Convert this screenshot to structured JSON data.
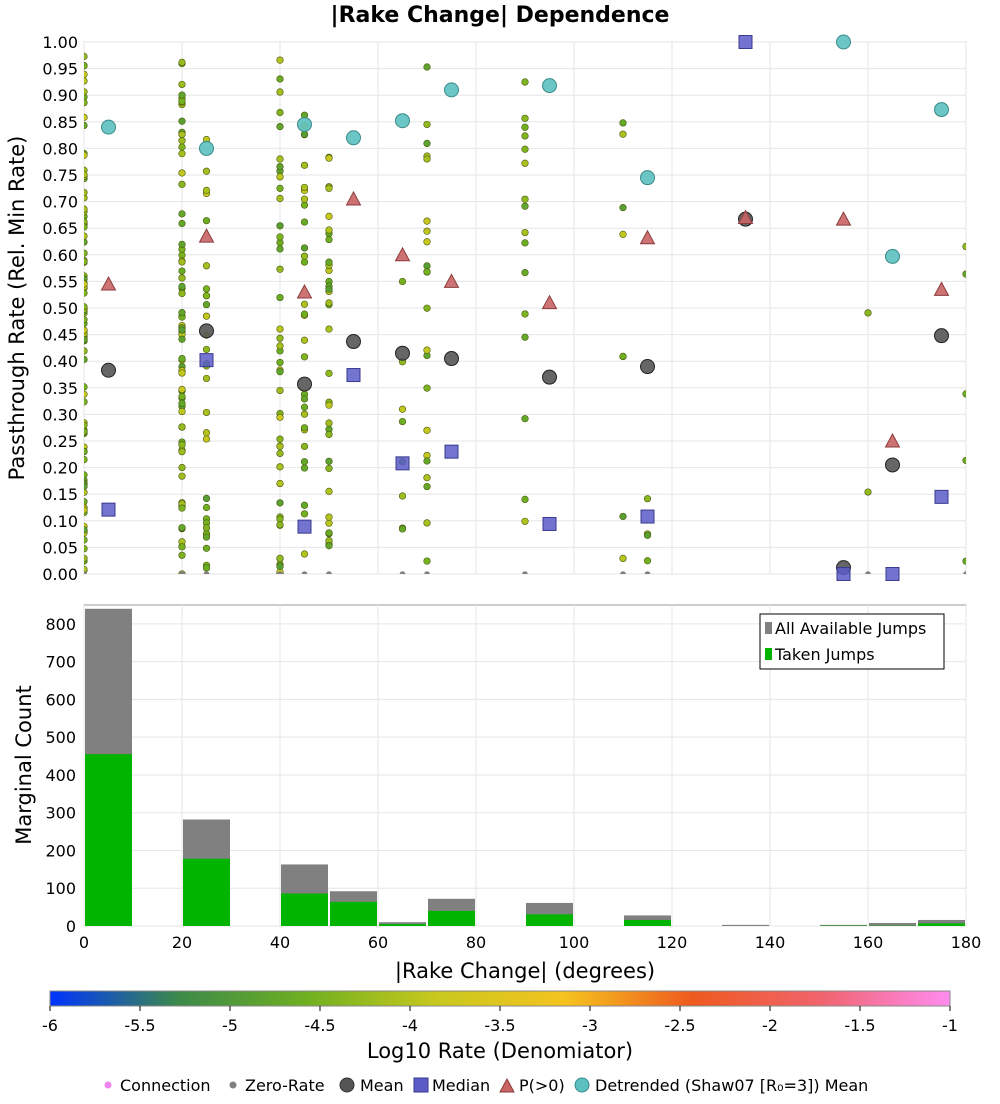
{
  "title": "|Rake Change| Dependence",
  "chart_data": [
    {
      "type": "scatter",
      "title": "|Rake Change| Dependence",
      "ylabel": "Passthrough Rate (Rel. Min Rate)",
      "xlim": [
        0,
        180
      ],
      "ylim": [
        0,
        1
      ],
      "grid": true,
      "y_ticks": [
        "0.00",
        "0.05",
        "0.10",
        "0.15",
        "0.20",
        "0.25",
        "0.30",
        "0.35",
        "0.40",
        "0.45",
        "0.50",
        "0.55",
        "0.60",
        "0.65",
        "0.70",
        "0.75",
        "0.80",
        "0.85",
        "0.90",
        "0.95",
        "1.00"
      ],
      "series": [
        {
          "name": "Mean",
          "color": "#555555",
          "x": [
            5,
            25,
            45,
            55,
            65,
            75,
            95,
            115,
            135,
            155,
            165,
            175
          ],
          "y": [
            0.383,
            0.457,
            0.357,
            0.437,
            0.415,
            0.405,
            0.37,
            0.39,
            0.667,
            0.012,
            0.205,
            0.448
          ]
        },
        {
          "name": "Median",
          "color": "#5b5bc8",
          "x": [
            5,
            25,
            45,
            55,
            65,
            75,
            95,
            115,
            135,
            155,
            165,
            175
          ],
          "y": [
            0.121,
            0.402,
            0.089,
            0.374,
            0.208,
            0.23,
            0.094,
            0.108,
            1.0,
            0.0,
            0.0,
            0.145
          ]
        },
        {
          "name": "P(>0)",
          "color": "#c86464",
          "x": [
            5,
            25,
            45,
            55,
            65,
            75,
            95,
            115,
            135,
            155,
            165,
            175
          ],
          "y": [
            0.545,
            0.635,
            0.53,
            0.705,
            0.6,
            0.55,
            0.51,
            0.632,
            0.67,
            0.667,
            0.25,
            0.535
          ]
        },
        {
          "name": "Detrended (Shaw07 [R₀=3]) Mean",
          "color": "#5cc0c0",
          "x": [
            5,
            25,
            45,
            55,
            65,
            75,
            95,
            115,
            155,
            165,
            175
          ],
          "y": [
            0.84,
            0.8,
            0.845,
            0.82,
            0.852,
            0.91,
            0.918,
            0.745,
            1.0,
            0.597,
            0.873
          ]
        }
      ],
      "connection_columns": {
        "x": [
          0,
          20,
          25,
          40,
          45,
          50,
          65,
          70,
          90,
          110,
          115,
          160,
          180
        ],
        "counts": [
          95,
          70,
          30,
          45,
          30,
          35,
          8,
          22,
          16,
          8,
          4,
          2,
          5
        ],
        "y_ranges": [
          [
            0,
            1
          ],
          [
            0,
            1
          ],
          [
            0,
            0.85
          ],
          [
            0,
            1
          ],
          [
            0,
            0.87
          ],
          [
            0,
            0.8
          ],
          [
            0,
            0.72
          ],
          [
            0,
            0.98
          ],
          [
            0,
            1
          ],
          [
            0,
            0.87
          ],
          [
            0,
            0.26
          ],
          [
            0,
            0.64
          ],
          [
            0,
            0.91
          ]
        ]
      },
      "colorbar": {
        "label": "Log10 Rate (Denomiator)",
        "min": -6,
        "max": -1,
        "ticks": [
          "-6",
          "-5.5",
          "-5",
          "-4.5",
          "-4",
          "-3.5",
          "-3",
          "-2.5",
          "-2",
          "-1.5",
          "-1"
        ],
        "colors": [
          "#0033ff",
          "#3c8a4a",
          "#6fb020",
          "#c8c81e",
          "#f5c31e",
          "#ee5a1e",
          "#f0646e",
          "#ff8cf0"
        ]
      }
    },
    {
      "type": "bar",
      "xlabel": "|Rake Change| (degrees)",
      "ylabel": "Marginal Count",
      "xlim": [
        0,
        180
      ],
      "ylim": [
        0,
        850
      ],
      "grid": true,
      "x_ticks": [
        "0",
        "20",
        "40",
        "60",
        "80",
        "100",
        "120",
        "140",
        "160",
        "180"
      ],
      "y_ticks": [
        "0",
        "100",
        "200",
        "300",
        "400",
        "500",
        "600",
        "700",
        "800"
      ],
      "bin_centers": [
        5,
        25,
        45,
        55,
        65,
        75,
        95,
        115,
        135,
        155,
        165,
        175
      ],
      "series": [
        {
          "name": "All Available Jumps",
          "color": "#808080",
          "values": [
            840,
            282,
            163,
            92,
            10,
            72,
            61,
            28,
            3,
            3,
            8,
            16
          ]
        },
        {
          "name": "Taken Jumps",
          "color": "#00b400",
          "values": [
            455,
            178,
            86,
            64,
            5,
            40,
            31,
            16,
            0,
            1,
            1,
            7
          ]
        }
      ],
      "legend": {
        "position": "top-right",
        "items": [
          "All Available Jumps",
          "Taken Jumps"
        ]
      }
    }
  ],
  "legend": {
    "items": [
      {
        "label": "Connection",
        "marker": "small-dot",
        "color": "#ee82ee"
      },
      {
        "label": "Zero-Rate",
        "marker": "small-dot",
        "color": "#808080"
      },
      {
        "label": "Mean",
        "marker": "circle",
        "color": "#555555"
      },
      {
        "label": "Median",
        "marker": "square",
        "color": "#5b5bc8"
      },
      {
        "label": "P(>0)",
        "marker": "triangle",
        "color": "#c86464"
      },
      {
        "label": "Detrended (Shaw07 [R₀=3]) Mean",
        "marker": "circle",
        "color": "#5cc0c0"
      }
    ]
  }
}
